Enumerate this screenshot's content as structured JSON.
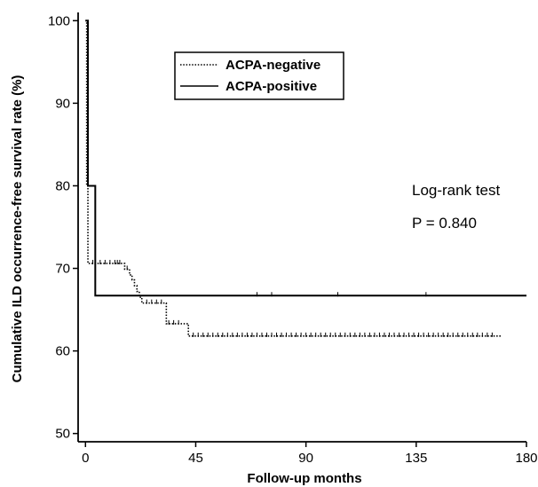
{
  "chart_data": {
    "type": "line",
    "xlabel": "Follow-up months",
    "ylabel": "Cumulative ILD occurrence-free survival rate (%)",
    "xlim": [
      -3,
      180
    ],
    "ylim": [
      49,
      101
    ],
    "xticks": [
      0,
      45,
      90,
      135,
      180
    ],
    "yticks": [
      50,
      60,
      70,
      80,
      90,
      100
    ],
    "grid": false,
    "legend_position": "top-left",
    "series": [
      {
        "name": "ACPA-negative",
        "style": "dotted",
        "color": "#000000",
        "step_points": [
          [
            0,
            100
          ],
          [
            0.5,
            80
          ],
          [
            1,
            70.6
          ],
          [
            15,
            70.6
          ],
          [
            16,
            69.9
          ],
          [
            18,
            69.2
          ],
          [
            19,
            68.6
          ],
          [
            20,
            67.9
          ],
          [
            21,
            67.2
          ],
          [
            22,
            66.5
          ],
          [
            23,
            65.8
          ],
          [
            32,
            65.8
          ],
          [
            33,
            63.3
          ],
          [
            40,
            63.3
          ],
          [
            42,
            61.8
          ],
          [
            170,
            61.8
          ]
        ],
        "censor_x": [
          3,
          6,
          8,
          10,
          12,
          13,
          14,
          17,
          25,
          27,
          29,
          31,
          34,
          36,
          38,
          44,
          46,
          48,
          50,
          52,
          54,
          56,
          58,
          60,
          62,
          64,
          66,
          68,
          70,
          72,
          74,
          76,
          78,
          80,
          82,
          84,
          86,
          88,
          90,
          92,
          94,
          96,
          98,
          100,
          102,
          104,
          106,
          108,
          110,
          112,
          114,
          116,
          118,
          120,
          122,
          124,
          126,
          128,
          130,
          132,
          134,
          136,
          138,
          140,
          142,
          144,
          146,
          148,
          150,
          152,
          154,
          156,
          158,
          160,
          162,
          164,
          166
        ]
      },
      {
        "name": "ACPA-positive",
        "style": "solid",
        "color": "#000000",
        "step_points": [
          [
            0,
            100
          ],
          [
            1,
            80
          ],
          [
            4,
            66.7
          ],
          [
            180,
            66.7
          ]
        ],
        "censor_x": [
          70,
          76,
          103,
          139
        ]
      }
    ],
    "annotations": {
      "test_name": "Log-rank test",
      "p_value": "P = 0.840"
    }
  }
}
